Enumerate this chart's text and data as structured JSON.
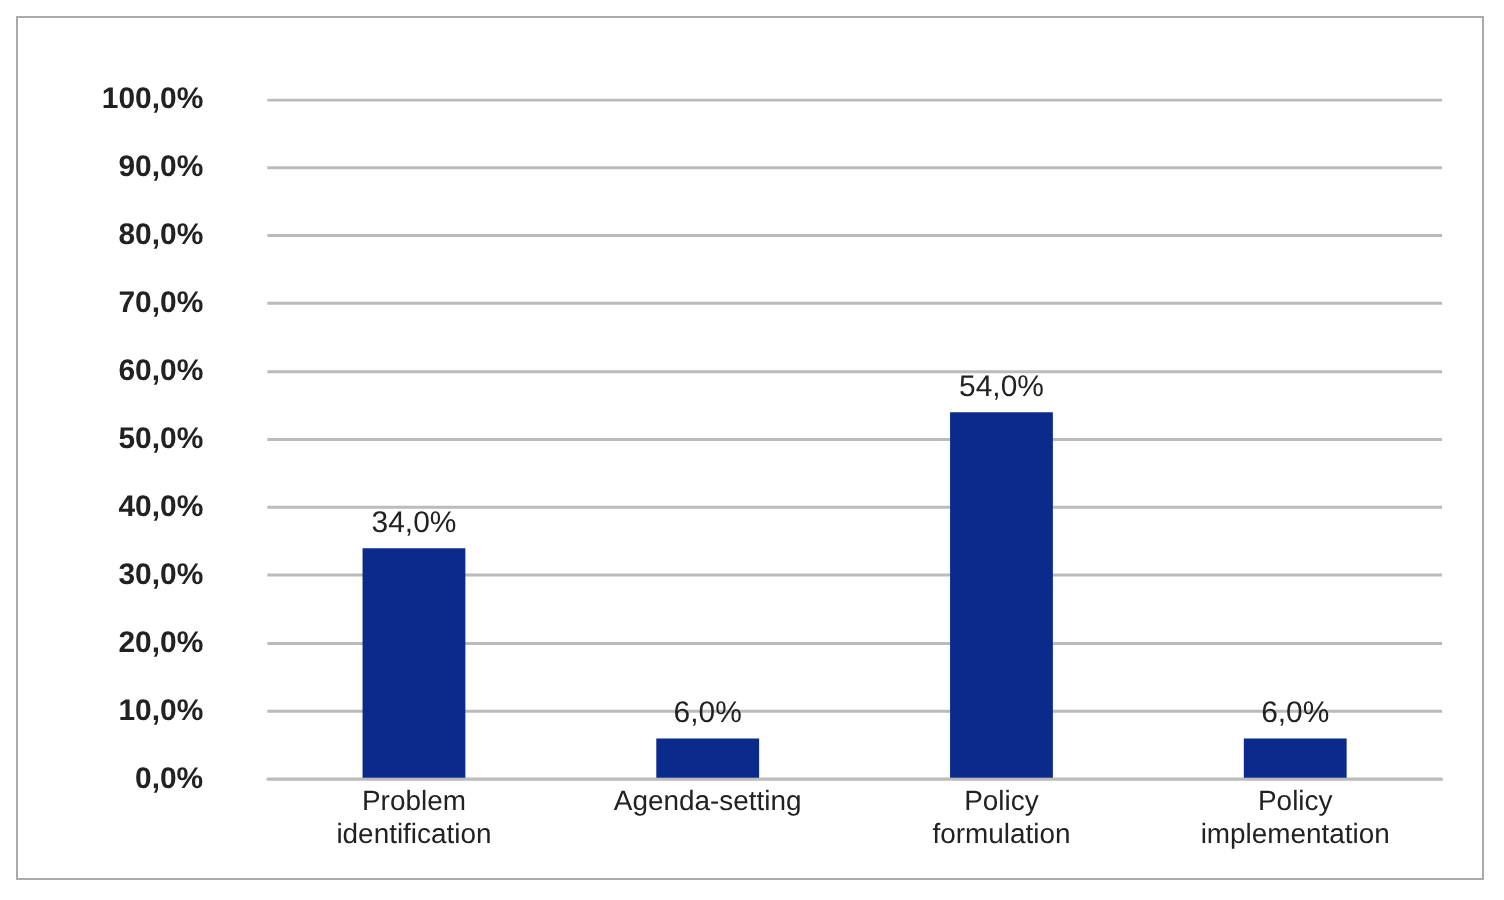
{
  "chart_data": {
    "type": "bar",
    "categories": [
      "Problem identification",
      "Agenda-setting",
      "Policy formulation",
      "Policy implementation"
    ],
    "values": [
      34,
      6,
      54,
      6
    ],
    "color": "#0a2a8c",
    "value_labels": [
      "34,0%",
      "6,0%",
      "54,0%",
      "6,0%"
    ],
    "ylim": [
      0,
      100
    ],
    "yticks": [
      {
        "value": 0,
        "label": "0,0%"
      },
      {
        "value": 10,
        "label": "10,0%"
      },
      {
        "value": 20,
        "label": "20,0%"
      },
      {
        "value": 30,
        "label": "30,0%"
      },
      {
        "value": 40,
        "label": "40,0%"
      },
      {
        "value": 50,
        "label": "50,0%"
      },
      {
        "value": 60,
        "label": "60,0%"
      },
      {
        "value": 70,
        "label": "70,0%"
      },
      {
        "value": 80,
        "label": "80,0%"
      },
      {
        "value": 90,
        "label": "90,0%"
      },
      {
        "value": 100,
        "label": "100,0%"
      }
    ],
    "grid": "y",
    "legend": false
  }
}
